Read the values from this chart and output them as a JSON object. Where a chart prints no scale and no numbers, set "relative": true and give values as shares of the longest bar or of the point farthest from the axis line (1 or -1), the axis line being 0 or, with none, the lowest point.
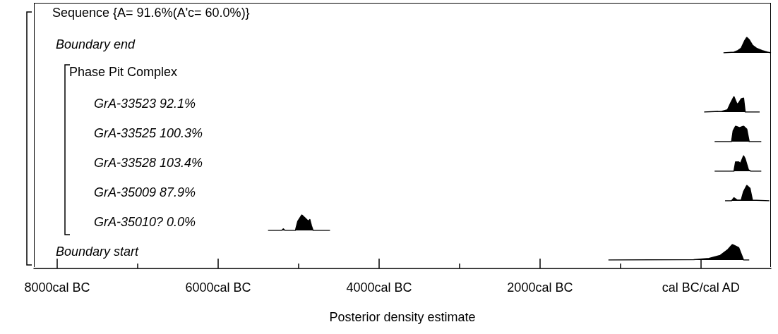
{
  "chart_data": [
    {
      "type": "area",
      "relative": true,
      "title": "Boundary end",
      "annotations": [
        "Sequence {A= 91.6%(A'c= 60.0%)}"
      ],
      "xlim": [
        -8290,
        870
      ],
      "tick_labels": false,
      "series": [
        {
          "color": "#000000",
          "x": [
            280,
            410,
            460,
            500,
            540,
            570,
            600,
            640,
            690,
            760,
            830,
            870
          ],
          "values": [
            0,
            0.05,
            0.15,
            0.3,
            0.75,
            1,
            0.85,
            0.5,
            0.3,
            0.15,
            0.05,
            0
          ]
        }
      ]
    },
    {
      "type": "area",
      "relative": true,
      "title": "GrA-33523 92.1%",
      "annotations": [
        "Phase Pit Complex"
      ],
      "xlim": [
        -8290,
        870
      ],
      "tick_labels": false,
      "series": [
        {
          "color": "#000000",
          "x": [
            40,
            260,
            330,
            370,
            410,
            450,
            470,
            500,
            530,
            550,
            730
          ],
          "values": [
            0,
            0.05,
            0.15,
            0.6,
            1,
            0.5,
            0.6,
            0.85,
            0.9,
            0,
            0
          ]
        }
      ]
    },
    {
      "type": "area",
      "relative": true,
      "title": "GrA-33525 100.3%",
      "xlim": [
        -8290,
        870
      ],
      "tick_labels": false,
      "series": [
        {
          "color": "#000000",
          "x": [
            170,
            380,
            400,
            430,
            480,
            530,
            570,
            600,
            750
          ],
          "values": [
            0,
            0,
            0.7,
            1,
            0.9,
            1,
            0.8,
            0,
            0
          ]
        }
      ]
    },
    {
      "type": "area",
      "relative": true,
      "title": "GrA-33528 103.4%",
      "xlim": [
        -8290,
        870
      ],
      "tick_labels": false,
      "series": [
        {
          "color": "#000000",
          "x": [
            170,
            410,
            430,
            470,
            490,
            530,
            550,
            590,
            620,
            750
          ],
          "values": [
            0,
            0,
            0.6,
            0.6,
            0.5,
            1,
            0.8,
            0.1,
            0,
            0
          ]
        }
      ]
    },
    {
      "type": "area",
      "relative": true,
      "title": "GrA-35009 87.9%",
      "xlim": [
        -8290,
        870
      ],
      "tick_labels": false,
      "series": [
        {
          "color": "#000000",
          "x": [
            300,
            380,
            410,
            450,
            500,
            530,
            570,
            610,
            640,
            850
          ],
          "values": [
            0,
            0,
            0.2,
            0.05,
            0.05,
            0.6,
            1,
            0.8,
            0.05,
            0
          ]
        }
      ]
    },
    {
      "type": "area",
      "relative": true,
      "title": "GrA-35010? 0.0%",
      "xlim": [
        -8290,
        870
      ],
      "tick_labels": false,
      "series": [
        {
          "color": "#000000",
          "x": [
            -5380,
            -5210,
            -5190,
            -5170,
            -5040,
            -5010,
            -4960,
            -4920,
            -4880,
            -4860,
            -4840,
            -4820,
            -4610
          ],
          "values": [
            0,
            0,
            0.1,
            0,
            0,
            0.6,
            1,
            0.8,
            0.6,
            0.7,
            0.3,
            0,
            0
          ]
        }
      ]
    },
    {
      "type": "area",
      "relative": true,
      "title": "Boundary start",
      "xlim": [
        -8290,
        870
      ],
      "xlabel": "Posterior density estimate",
      "xticks": [
        {
          "value": -8000,
          "label": "8000cal BC"
        },
        {
          "value": -7000,
          "label": null
        },
        {
          "value": -6000,
          "label": "6000cal BC"
        },
        {
          "value": -5000,
          "label": null
        },
        {
          "value": -4000,
          "label": "4000cal BC"
        },
        {
          "value": -3000,
          "label": null
        },
        {
          "value": -2000,
          "label": "2000cal BC"
        },
        {
          "value": -1000,
          "label": null
        },
        {
          "value": 0,
          "label": "cal BC/cal AD"
        }
      ],
      "series": [
        {
          "color": "#000000",
          "x": [
            -1150,
            -90,
            100,
            240,
            330,
            390,
            430,
            470,
            530,
            600
          ],
          "values": [
            0,
            0.02,
            0.1,
            0.3,
            0.65,
            1,
            0.9,
            0.8,
            0,
            0
          ]
        }
      ]
    }
  ]
}
